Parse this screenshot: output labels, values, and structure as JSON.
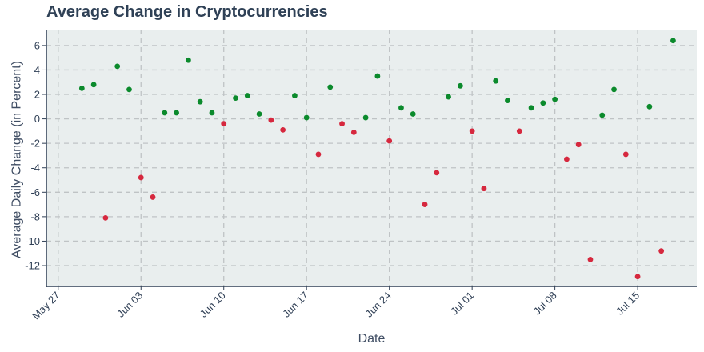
{
  "chart_data": {
    "type": "scatter",
    "title": "Average Change in Cryptocurrencies",
    "xlabel": "Date",
    "ylabel": "Average Daily Change (in Percent)",
    "x_ticks": [
      "May 27",
      "Jun 03",
      "Jun 10",
      "Jun 17",
      "Jun 24",
      "Jul 01",
      "Jul 08",
      "Jul 15"
    ],
    "y_ticks": [
      6,
      4,
      2,
      0,
      -2,
      -4,
      -6,
      -8,
      -10,
      -12
    ],
    "xlim": [
      "2024-05-26",
      "2024-07-20"
    ],
    "ylim": [
      -13.7,
      7.3
    ],
    "grid": true,
    "colors": {
      "positive": "#0b8a2c",
      "negative": "#d6283e",
      "plot_bg": "#e9eeee",
      "grid": "#bfc3c5",
      "axis": "#2f3f55"
    },
    "points": [
      {
        "x": "2024-05-29",
        "y": 2.5
      },
      {
        "x": "2024-05-30",
        "y": 2.8
      },
      {
        "x": "2024-05-31",
        "y": -8.1
      },
      {
        "x": "2024-06-01",
        "y": 4.3
      },
      {
        "x": "2024-06-02",
        "y": 2.4
      },
      {
        "x": "2024-06-03",
        "y": -4.8
      },
      {
        "x": "2024-06-04",
        "y": -6.4
      },
      {
        "x": "2024-06-05",
        "y": 0.5
      },
      {
        "x": "2024-06-06",
        "y": 0.5
      },
      {
        "x": "2024-06-07",
        "y": 4.8
      },
      {
        "x": "2024-06-08",
        "y": 1.4
      },
      {
        "x": "2024-06-09",
        "y": 0.5
      },
      {
        "x": "2024-06-10",
        "y": -0.4
      },
      {
        "x": "2024-06-11",
        "y": 1.7
      },
      {
        "x": "2024-06-12",
        "y": 1.9
      },
      {
        "x": "2024-06-13",
        "y": 0.4
      },
      {
        "x": "2024-06-14",
        "y": -0.1
      },
      {
        "x": "2024-06-15",
        "y": -0.9
      },
      {
        "x": "2024-06-16",
        "y": 1.9
      },
      {
        "x": "2024-06-17",
        "y": 0.1
      },
      {
        "x": "2024-06-18",
        "y": -2.9
      },
      {
        "x": "2024-06-19",
        "y": 2.6
      },
      {
        "x": "2024-06-20",
        "y": -0.4
      },
      {
        "x": "2024-06-21",
        "y": -1.1
      },
      {
        "x": "2024-06-22",
        "y": 0.1
      },
      {
        "x": "2024-06-23",
        "y": 3.5
      },
      {
        "x": "2024-06-24",
        "y": -1.8
      },
      {
        "x": "2024-06-25",
        "y": 0.9
      },
      {
        "x": "2024-06-26",
        "y": 0.4
      },
      {
        "x": "2024-06-27",
        "y": -7.0
      },
      {
        "x": "2024-06-28",
        "y": -4.4
      },
      {
        "x": "2024-06-29",
        "y": 1.8
      },
      {
        "x": "2024-06-30",
        "y": 2.7
      },
      {
        "x": "2024-07-01",
        "y": -1.0
      },
      {
        "x": "2024-07-02",
        "y": -5.7
      },
      {
        "x": "2024-07-03",
        "y": 3.1
      },
      {
        "x": "2024-07-04",
        "y": 1.5
      },
      {
        "x": "2024-07-05",
        "y": -1.0
      },
      {
        "x": "2024-07-06",
        "y": 0.9
      },
      {
        "x": "2024-07-07",
        "y": 1.3
      },
      {
        "x": "2024-07-08",
        "y": 1.6
      },
      {
        "x": "2024-07-09",
        "y": -3.3
      },
      {
        "x": "2024-07-10",
        "y": -2.1
      },
      {
        "x": "2024-07-11",
        "y": -11.5
      },
      {
        "x": "2024-07-12",
        "y": 0.3
      },
      {
        "x": "2024-07-13",
        "y": 2.4
      },
      {
        "x": "2024-07-14",
        "y": -2.9
      },
      {
        "x": "2024-07-15",
        "y": -12.9
      },
      {
        "x": "2024-07-16",
        "y": 1.0
      },
      {
        "x": "2024-07-17",
        "y": -10.8
      },
      {
        "x": "2024-07-18",
        "y": 6.4
      }
    ]
  }
}
